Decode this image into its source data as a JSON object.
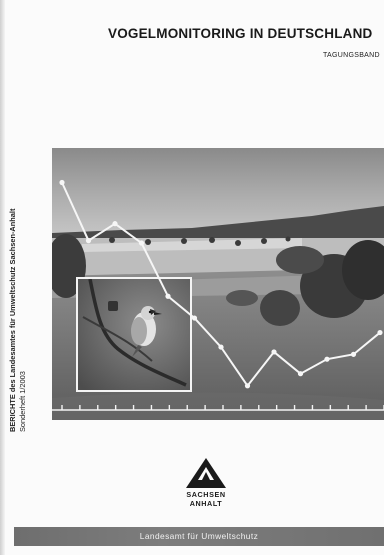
{
  "cover": {
    "title": "VOGELMONITORING IN DEUTSCHLAND",
    "subtitle": "TAGUNGSBAND"
  },
  "spine": {
    "series": "BERICHTE des Landesamtes für Umweltschutz Sachsen-Anhalt",
    "issue": "Sonderheft 1/2003"
  },
  "logo": {
    "line1": "SACHSEN",
    "line2": "ANHALT"
  },
  "footer": {
    "publisher": "Landesamt für Umweltschutz"
  },
  "chart_data": {
    "type": "line",
    "title": "",
    "xlabel": "",
    "ylabel": "",
    "values": [
      0.94,
      0.7,
      0.77,
      0.69,
      0.47,
      0.38,
      0.26,
      0.1,
      0.24,
      0.15,
      0.21,
      0.23,
      0.32
    ],
    "ylim": [
      0,
      1
    ],
    "grid": false,
    "axis_ticks": 19
  }
}
